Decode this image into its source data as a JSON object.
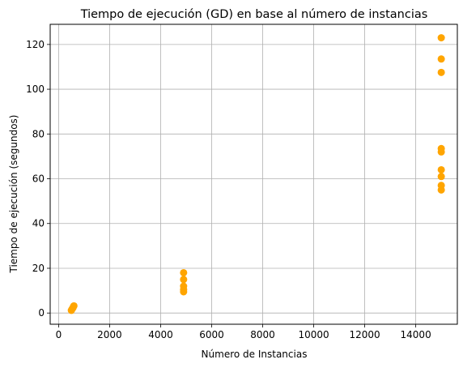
{
  "chart_data": {
    "type": "scatter",
    "title": "Tiempo de ejecución (GD) en base al número de instancias",
    "xlabel": "Número de Instancias",
    "ylabel": "Tiempo de ejecución (segundos)",
    "xlim": [
      -330,
      15630
    ],
    "ylim": [
      -5,
      129
    ],
    "xticks": [
      0,
      2000,
      4000,
      6000,
      8000,
      10000,
      12000,
      14000
    ],
    "yticks": [
      0,
      20,
      40,
      60,
      80,
      100,
      120
    ],
    "grid": true,
    "legend": "none",
    "marker_color": "#FFA500",
    "series": [
      {
        "points": [
          {
            "x": 500,
            "y": 1.2
          },
          {
            "x": 530,
            "y": 1.8
          },
          {
            "x": 560,
            "y": 2.3
          },
          {
            "x": 580,
            "y": 2.8
          },
          {
            "x": 600,
            "y": 3.2
          },
          {
            "x": 4900,
            "y": 9.5
          },
          {
            "x": 4900,
            "y": 10.5
          },
          {
            "x": 4900,
            "y": 12.0
          },
          {
            "x": 4900,
            "y": 15.0
          },
          {
            "x": 4900,
            "y": 18.0
          },
          {
            "x": 15000,
            "y": 55.0
          },
          {
            "x": 15000,
            "y": 57.0
          },
          {
            "x": 15000,
            "y": 61.0
          },
          {
            "x": 15000,
            "y": 64.0
          },
          {
            "x": 15000,
            "y": 72.0
          },
          {
            "x": 15000,
            "y": 73.5
          },
          {
            "x": 15000,
            "y": 107.5
          },
          {
            "x": 15000,
            "y": 113.5
          },
          {
            "x": 15000,
            "y": 123.0
          }
        ]
      }
    ]
  }
}
